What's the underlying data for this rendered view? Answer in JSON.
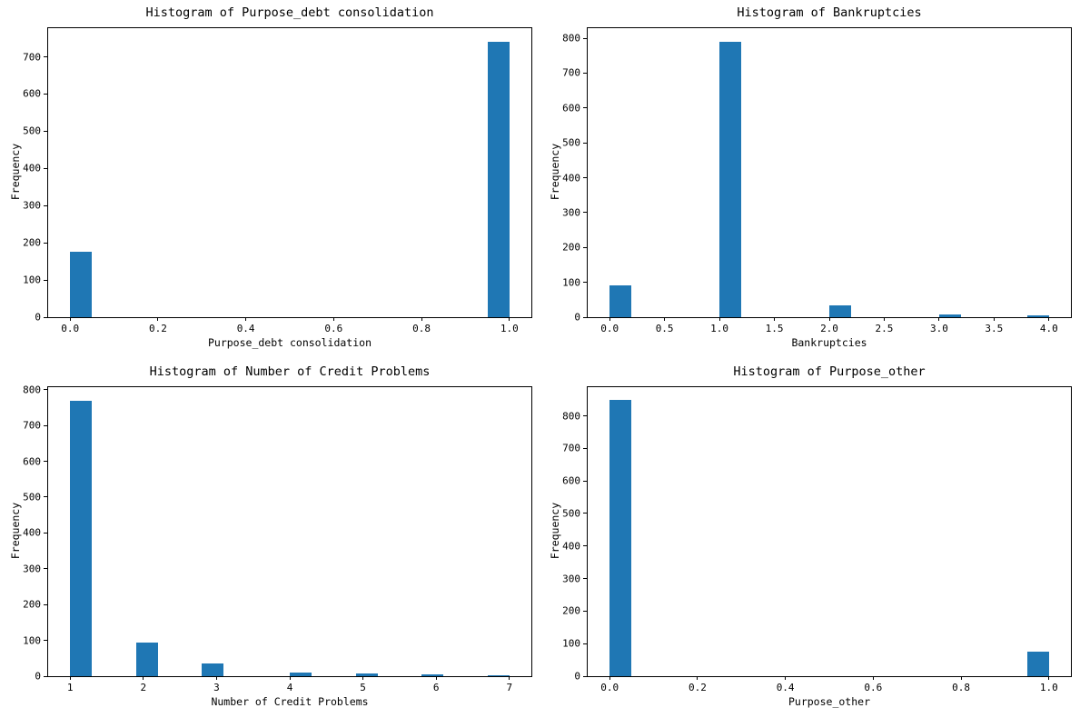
{
  "figure": {
    "background": "#ffffff",
    "bar_color": "#1f77b4",
    "axis_color": "#000000",
    "text_color": "#000000",
    "layout": "2x2 grid of matplotlib-style histograms",
    "grid_lines": false,
    "legend": null
  },
  "chart_data": [
    {
      "type": "bar",
      "subtype": "histogram",
      "title": "Histogram of Purpose_debt consolidation",
      "xlabel": "Purpose_debt consolidation",
      "ylabel": "Frequency",
      "xlim": [
        -0.05,
        1.05
      ],
      "ylim": [
        0,
        777
      ],
      "bin_width": 0.05,
      "yticks": [
        0,
        100,
        200,
        300,
        400,
        500,
        600,
        700
      ],
      "xticks": {
        "values": [
          0.0,
          0.2,
          0.4,
          0.6,
          0.8,
          1.0
        ],
        "labels": [
          "0.0",
          "0.2",
          "0.4",
          "0.6",
          "0.8",
          "1.0"
        ]
      },
      "bars": [
        {
          "value": 0,
          "bin_start": 0.0,
          "bin_end": 0.05,
          "frequency": 176
        },
        {
          "value": 1,
          "bin_start": 0.95,
          "bin_end": 1.0,
          "frequency": 740
        }
      ]
    },
    {
      "type": "bar",
      "subtype": "histogram",
      "title": "Histogram of Bankruptcies",
      "xlabel": "Bankruptcies",
      "ylabel": "Frequency",
      "xlim": [
        -0.2,
        4.2
      ],
      "ylim": [
        0,
        829
      ],
      "bin_width": 0.2,
      "yticks": [
        0,
        100,
        200,
        300,
        400,
        500,
        600,
        700,
        800
      ],
      "xticks": {
        "values": [
          0.0,
          0.5,
          1.0,
          1.5,
          2.0,
          2.5,
          3.0,
          3.5,
          4.0
        ],
        "labels": [
          "0.0",
          "0.5",
          "1.0",
          "1.5",
          "2.0",
          "2.5",
          "3.0",
          "3.5",
          "4.0"
        ]
      },
      "bars": [
        {
          "value": 0,
          "bin_start": 0.0,
          "bin_end": 0.2,
          "frequency": 90
        },
        {
          "value": 1,
          "bin_start": 1.0,
          "bin_end": 1.2,
          "frequency": 789
        },
        {
          "value": 2,
          "bin_start": 2.0,
          "bin_end": 2.2,
          "frequency": 33
        },
        {
          "value": 3,
          "bin_start": 3.0,
          "bin_end": 3.2,
          "frequency": 9
        },
        {
          "value": 4,
          "bin_start": 3.8,
          "bin_end": 4.0,
          "frequency": 4
        }
      ]
    },
    {
      "type": "bar",
      "subtype": "histogram",
      "title": "Histogram of Number of Credit Problems",
      "xlabel": "Number of Credit Problems",
      "ylabel": "Frequency",
      "xlim": [
        0.7,
        7.3
      ],
      "ylim": [
        0,
        807
      ],
      "bin_width": 0.3,
      "yticks": [
        0,
        100,
        200,
        300,
        400,
        500,
        600,
        700,
        800
      ],
      "xticks": {
        "values": [
          1,
          2,
          3,
          4,
          5,
          6,
          7
        ],
        "labels": [
          "1",
          "2",
          "3",
          "4",
          "5",
          "6",
          "7"
        ]
      },
      "bars": [
        {
          "value": 1,
          "bin_start": 1.0,
          "bin_end": 1.3,
          "frequency": 768
        },
        {
          "value": 2,
          "bin_start": 1.9,
          "bin_end": 2.2,
          "frequency": 95
        },
        {
          "value": 3,
          "bin_start": 2.8,
          "bin_end": 3.1,
          "frequency": 35
        },
        {
          "value": 4,
          "bin_start": 4.0,
          "bin_end": 4.3,
          "frequency": 10
        },
        {
          "value": 5,
          "bin_start": 4.9,
          "bin_end": 5.2,
          "frequency": 8
        },
        {
          "value": 6,
          "bin_start": 5.8,
          "bin_end": 6.1,
          "frequency": 6
        },
        {
          "value": 7,
          "bin_start": 6.7,
          "bin_end": 7.0,
          "frequency": 3
        }
      ]
    },
    {
      "type": "bar",
      "subtype": "histogram",
      "title": "Histogram of Purpose_other",
      "xlabel": "Purpose_other",
      "ylabel": "Frequency",
      "xlim": [
        -0.05,
        1.05
      ],
      "ylim": [
        0,
        888
      ],
      "bin_width": 0.05,
      "yticks": [
        0,
        100,
        200,
        300,
        400,
        500,
        600,
        700,
        800
      ],
      "xticks": {
        "values": [
          0.0,
          0.2,
          0.4,
          0.6,
          0.8,
          1.0
        ],
        "labels": [
          "0.0",
          "0.2",
          "0.4",
          "0.6",
          "0.8",
          "1.0"
        ]
      },
      "bars": [
        {
          "value": 0,
          "bin_start": 0.0,
          "bin_end": 0.05,
          "frequency": 848
        },
        {
          "value": 1,
          "bin_start": 0.95,
          "bin_end": 1.0,
          "frequency": 75
        }
      ]
    }
  ]
}
